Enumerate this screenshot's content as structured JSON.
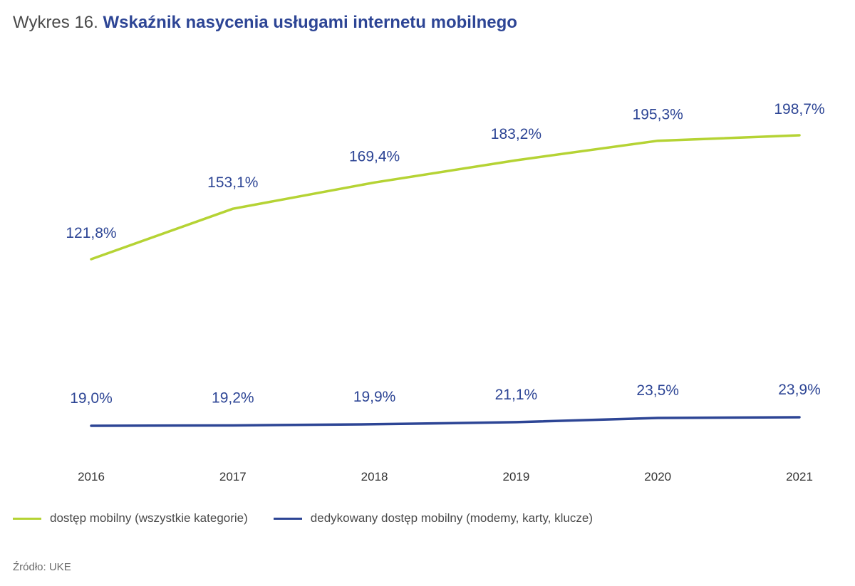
{
  "title": {
    "prefix": "Wykres 16.",
    "main": "Wskaźnik nasycenia usługami internetu mobilnego"
  },
  "chart_data": {
    "type": "line",
    "title": "Wskaźnik nasycenia usługami internetu mobilnego",
    "xlabel": "",
    "ylabel": "",
    "categories": [
      "2016",
      "2017",
      "2018",
      "2019",
      "2020",
      "2021"
    ],
    "series": [
      {
        "name": "dostęp mobilny (wszystkie kategorie)",
        "values": [
          121.8,
          153.1,
          169.4,
          183.2,
          195.3,
          198.7
        ],
        "labels": [
          "121,8%",
          "153,1%",
          "169,4%",
          "183,2%",
          "195,3%",
          "198,7%"
        ],
        "color": "#b5d334"
      },
      {
        "name": "dedykowany dostęp mobilny (modemy, karty, klucze)",
        "values": [
          19.0,
          19.2,
          19.9,
          21.1,
          23.5,
          23.9
        ],
        "labels": [
          "19,0%",
          "19,2%",
          "19,9%",
          "21,1%",
          "23,5%",
          "23,9%"
        ],
        "color": "#2d4595"
      }
    ],
    "grid": false,
    "legend": "bottom-left",
    "label_color": "#2d4595"
  },
  "source": "Źródło: UKE"
}
